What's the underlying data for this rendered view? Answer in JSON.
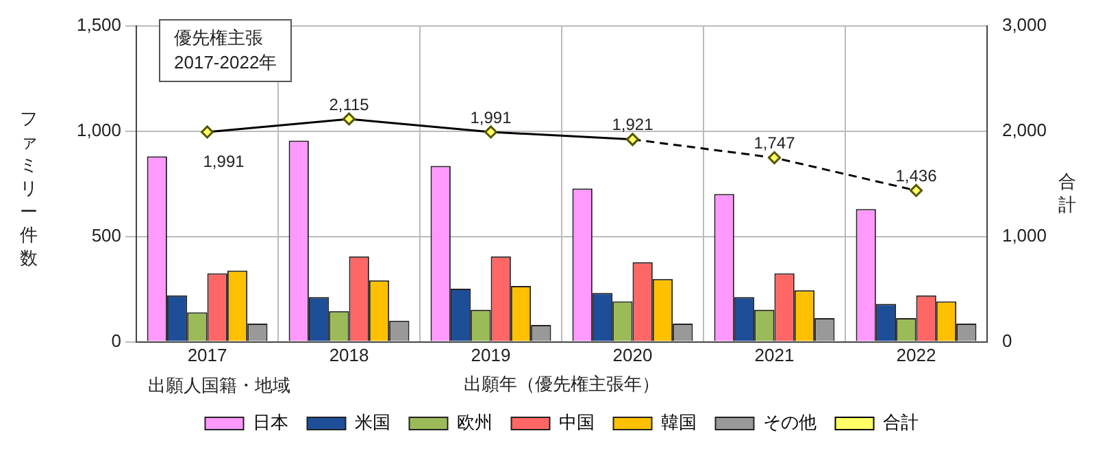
{
  "chart_data": {
    "type": "bar",
    "title": "優先権主張",
    "subtitle": "2017-2022年",
    "xlabel": "出願年（優先権主張年）",
    "ylabel": "ファミリー件数",
    "y2label": "合計",
    "annotations": [
      "出願人国籍・地域"
    ],
    "categories": [
      "2017",
      "2018",
      "2019",
      "2020",
      "2021",
      "2022"
    ],
    "series": [
      {
        "name": "日本",
        "color": "#ff99ff",
        "values": [
          880,
          955,
          835,
          728,
          702,
          630
        ]
      },
      {
        "name": "米国",
        "color": "#1f4e99",
        "values": [
          220,
          212,
          252,
          232,
          212,
          180
        ]
      },
      {
        "name": "欧州",
        "color": "#9bbb59",
        "values": [
          140,
          146,
          152,
          192,
          152,
          112
        ]
      },
      {
        "name": "中国",
        "color": "#ff6666",
        "values": [
          325,
          405,
          405,
          378,
          325,
          220
        ]
      },
      {
        "name": "韓国",
        "color": "#ffc000",
        "values": [
          338,
          292,
          265,
          298,
          245,
          192
        ]
      },
      {
        "name": "その他",
        "color": "#999999",
        "values": [
          86,
          100,
          80,
          86,
          112,
          86
        ]
      },
      {
        "name": "合計",
        "type": "line",
        "axis": "y2",
        "color": "#000000",
        "marker": "diamond",
        "line_style": "solid",
        "values": [
          1991,
          2115,
          1991,
          1921,
          null,
          null
        ],
        "value_labels": [
          "1,991",
          "2,115",
          "1,991",
          "1,921",
          null,
          null
        ]
      },
      {
        "type": "line",
        "axis": "y2",
        "color": "#000000",
        "marker": "diamond",
        "line_style": "dashed",
        "values": [
          null,
          null,
          null,
          1921,
          1747,
          1436
        ],
        "value_labels": [
          null,
          null,
          null,
          null,
          "1,747",
          "1,436"
        ]
      }
    ],
    "ylim": [
      0,
      1500
    ],
    "yticks": [
      0,
      {
        "value": 500,
        "label": "500"
      },
      {
        "value": 1000,
        "label": "1,000"
      },
      {
        "value": 1500,
        "label": "1,500"
      }
    ],
    "y2lim": [
      0,
      3000
    ],
    "y2ticks": [
      0,
      {
        "value": 1000,
        "label": "1,000"
      },
      {
        "value": 2000,
        "label": "2,000"
      },
      {
        "value": 3000,
        "label": "3,000"
      }
    ],
    "grid": true,
    "legend": "bottom"
  }
}
